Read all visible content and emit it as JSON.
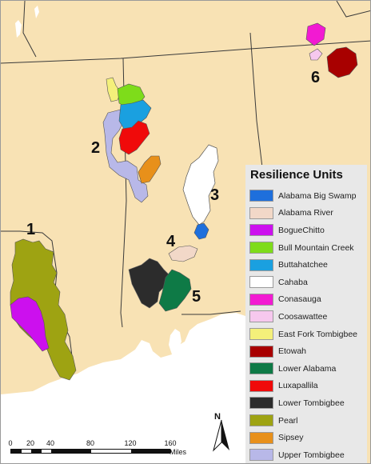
{
  "map": {
    "colors": {
      "land": "#f8e2b4",
      "water": "#ffffff",
      "boundary": "#3a3a3a"
    },
    "unit_numbers": [
      "1",
      "2",
      "3",
      "4",
      "5",
      "6"
    ]
  },
  "legend": {
    "title": "Resilience Units",
    "items": [
      {
        "label": "Alabama Big Swamp",
        "color": "#1e6fdc"
      },
      {
        "label": "Alabama River",
        "color": "#f2d8c8"
      },
      {
        "label": "BogueChitto",
        "color": "#cc10ee"
      },
      {
        "label": "Bull Mountain Creek",
        "color": "#7edc1a"
      },
      {
        "label": "Buttahatchee",
        "color": "#1aa0e0"
      },
      {
        "label": "Cahaba",
        "color": "#ffffff"
      },
      {
        "label": "Conasauga",
        "color": "#f21ad2"
      },
      {
        "label": "Coosawattee",
        "color": "#f6c8ee"
      },
      {
        "label": "East Fork Tombigbee",
        "color": "#f4f07a"
      },
      {
        "label": "Etowah",
        "color": "#a80000"
      },
      {
        "label": "Lower Alabama",
        "color": "#0e7a46"
      },
      {
        "label": "Luxapallila",
        "color": "#f00a0a"
      },
      {
        "label": "Lower Tombigbee",
        "color": "#2c2c2c"
      },
      {
        "label": "Pearl",
        "color": "#9ea312"
      },
      {
        "label": "Sipsey",
        "color": "#e8901a"
      },
      {
        "label": "Upper Tombigbee",
        "color": "#b8b8e8"
      }
    ]
  },
  "north_arrow": {
    "label": "N"
  },
  "scale_bar": {
    "ticks": [
      "0",
      "20",
      "40",
      "80",
      "120",
      "160"
    ],
    "unit": "Miles"
  }
}
